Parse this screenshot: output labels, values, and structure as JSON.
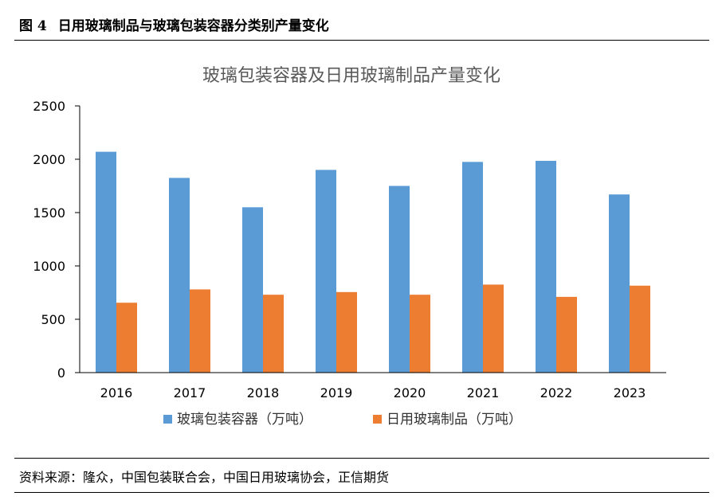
{
  "header": {
    "figure_num": "图 4",
    "title": "日用玻璃制品与玻璃包装容器分类别产量变化"
  },
  "source": "资料来源：隆众，中国包装联合会，中国日用玻璃协会，正信期货",
  "colors": {
    "series1": "#5B9BD5",
    "series2": "#ED7D31",
    "axis": "#000000"
  },
  "chart_data": {
    "type": "bar",
    "title": "玻璃包装容器及日用玻璃制品产量变化",
    "categories": [
      "2016",
      "2017",
      "2018",
      "2019",
      "2020",
      "2021",
      "2022",
      "2023"
    ],
    "series": [
      {
        "name": "玻璃包装容器（万吨）",
        "values": [
          2070,
          1825,
          1550,
          1900,
          1750,
          1975,
          1985,
          1670
        ]
      },
      {
        "name": "日用玻璃制品（万吨）",
        "values": [
          655,
          780,
          730,
          755,
          730,
          825,
          710,
          815
        ]
      }
    ],
    "yticks": [
      0,
      500,
      1000,
      1500,
      2000,
      2500
    ],
    "ylim": [
      0,
      2500
    ],
    "xlabel": "",
    "ylabel": "",
    "legend": "bottom"
  }
}
